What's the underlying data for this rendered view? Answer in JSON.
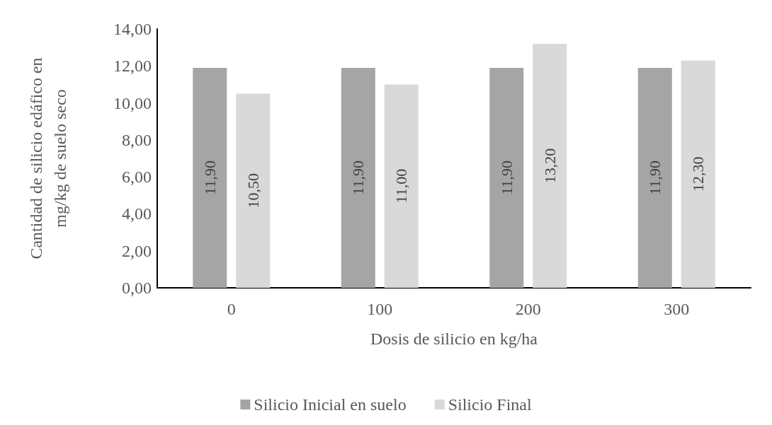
{
  "chart_data": {
    "type": "bar",
    "xlabel": "Dosis de silicio en kg/ha",
    "ylabel": "Cantidad de silicio edáfico en\nmg/kg de suelo seco",
    "categories": [
      "0",
      "100",
      "200",
      "300"
    ],
    "series": [
      {
        "name": "Silicio Inicial en suelo",
        "color": "#a5a5a5",
        "values": [
          11.9,
          11.9,
          11.9,
          11.9
        ],
        "value_labels": [
          "11,90",
          "11,90",
          "11,90",
          "11,90"
        ]
      },
      {
        "name": "Silicio Final",
        "color": "#d9d9d9",
        "values": [
          10.5,
          11.0,
          13.2,
          12.3
        ],
        "value_labels": [
          "10,50",
          "11,00",
          "13,20",
          "12,30"
        ]
      }
    ],
    "ylim": [
      0,
      14
    ],
    "yticks": [
      {
        "value": 0,
        "label": "0,00"
      },
      {
        "value": 2,
        "label": "2,00"
      },
      {
        "value": 4,
        "label": "4,00"
      },
      {
        "value": 6,
        "label": "6,00"
      },
      {
        "value": 8,
        "label": "8,00"
      },
      {
        "value": 10,
        "label": "10,00"
      },
      {
        "value": 12,
        "label": "12,00"
      },
      {
        "value": 14,
        "label": "14,00"
      }
    ],
    "grid": false,
    "legend": "bottom"
  }
}
